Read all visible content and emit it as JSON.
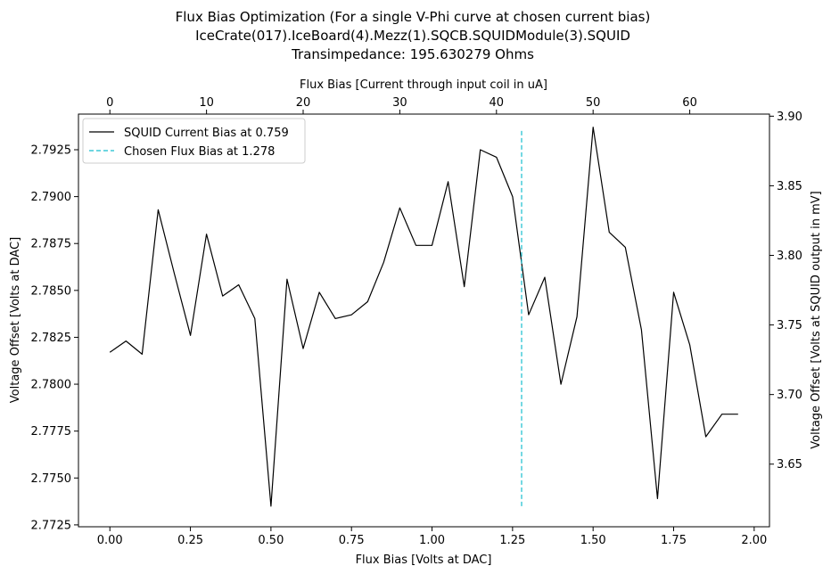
{
  "title": {
    "line1": "Flux Bias Optimization (For a single V-Phi curve at chosen current bias)",
    "line2": "IceCrate(017).IceBoard(4).Mezz(1).SQCB.SQUIDModule(3).SQUID",
    "line3": "Transimpedance: 195.630279 Ohms"
  },
  "colors": {
    "series": "#000000",
    "chosen": "#17becf",
    "axes": "#000000"
  },
  "chart_data": {
    "type": "line",
    "xlabel": "Flux Bias [Volts at DAC]",
    "ylabel": "Voltage Offset [Volts at DAC]",
    "x2label": "Flux Bias [Current through input coil in uA]",
    "y2label": "Voltage Offset [Volts at SQUID output in mV]",
    "xlim": [
      -0.0975,
      2.0475
    ],
    "ylim": [
      2.7724,
      2.7944
    ],
    "x2lim": [
      -3.25,
      68.25
    ],
    "y2lim": [
      3.605,
      3.9015
    ],
    "xticks": [
      "0.00",
      "0.25",
      "0.50",
      "0.75",
      "1.00",
      "1.25",
      "1.50",
      "1.75",
      "2.00"
    ],
    "yticks": [
      "2.7725",
      "2.7750",
      "2.7775",
      "2.7800",
      "2.7825",
      "2.7850",
      "2.7875",
      "2.7900",
      "2.7925"
    ],
    "x2ticks": [
      "0",
      "10",
      "20",
      "30",
      "40",
      "50",
      "60"
    ],
    "y2ticks": [
      "3.65",
      "3.70",
      "3.75",
      "3.80",
      "3.85",
      "3.90"
    ],
    "legend": "top-left",
    "series": [
      {
        "name": "SQUID Current Bias at 0.759",
        "style": "solid",
        "x": [
          0.0,
          0.05,
          0.1,
          0.15,
          0.2,
          0.25,
          0.3,
          0.35,
          0.4,
          0.45,
          0.5,
          0.55,
          0.6,
          0.65,
          0.7,
          0.75,
          0.8,
          0.85,
          0.9,
          0.95,
          1.0,
          1.05,
          1.1,
          1.15,
          1.2,
          1.25,
          1.3,
          1.35,
          1.4,
          1.45,
          1.5,
          1.55,
          1.6,
          1.65,
          1.7,
          1.75,
          1.8,
          1.85,
          1.9,
          1.95
        ],
        "y": [
          2.7817,
          2.7823,
          2.7816,
          2.7893,
          2.7859,
          2.7826,
          2.788,
          2.7847,
          2.7853,
          2.7835,
          2.7735,
          2.7856,
          2.7819,
          2.7849,
          2.7835,
          2.7837,
          2.7844,
          2.7865,
          2.7894,
          2.7874,
          2.7874,
          2.7908,
          2.7852,
          2.7925,
          2.7921,
          2.79,
          2.7837,
          2.7857,
          2.78,
          2.7836,
          2.7937,
          2.7881,
          2.7873,
          2.7829,
          2.7739,
          2.7849,
          2.7821,
          2.7772,
          2.7784,
          2.7784
        ]
      },
      {
        "name": "Chosen Flux Bias at 1.278",
        "style": "dashed",
        "x": [
          1.278,
          1.278
        ],
        "y": [
          2.7735,
          2.7935
        ]
      }
    ]
  }
}
